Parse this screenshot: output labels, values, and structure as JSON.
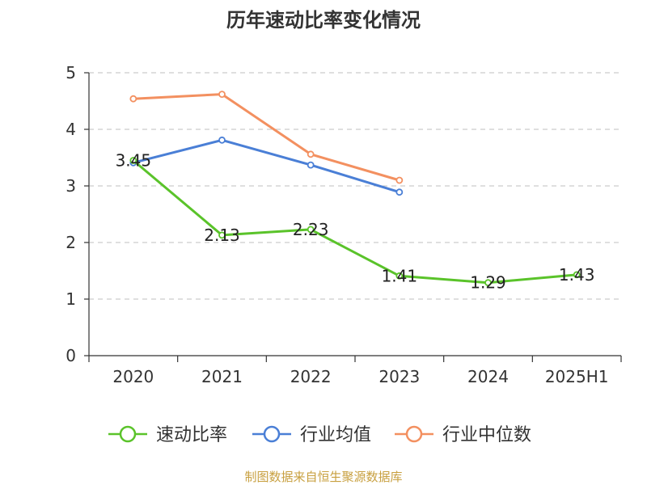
{
  "chart_data": {
    "type": "line",
    "title": "历年速动比率变化情况",
    "categories": [
      "2020",
      "2021",
      "2022",
      "2023",
      "2024",
      "2025H1"
    ],
    "ylim": [
      0,
      5
    ],
    "yticks": [
      "0",
      "1",
      "2",
      "3",
      "4",
      "5"
    ],
    "grid": true,
    "legend_position": "bottom",
    "series": [
      {
        "name": "速动比率",
        "color": "#5ac32a",
        "values": [
          3.45,
          2.13,
          2.23,
          1.41,
          1.29,
          1.43
        ],
        "labels": [
          "3.45",
          "2.13",
          "2.23",
          "1.41",
          "1.29",
          "1.43"
        ]
      },
      {
        "name": "行业均值",
        "color": "#4a7fd6",
        "values": [
          3.41,
          3.81,
          3.37,
          2.89,
          null,
          null
        ]
      },
      {
        "name": "行业中位数",
        "color": "#f39060",
        "values": [
          4.54,
          4.62,
          3.56,
          3.1,
          null,
          null
        ]
      }
    ]
  },
  "source": {
    "text": "制图数据来自恒生聚源数据库",
    "color": "#c8a040"
  }
}
